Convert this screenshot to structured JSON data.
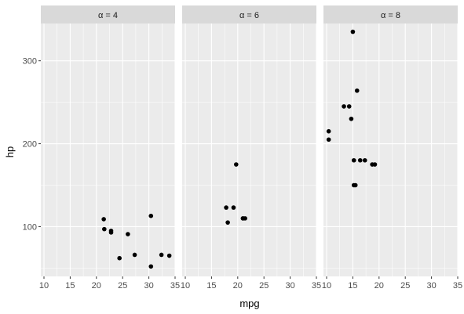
{
  "chart_data": {
    "type": "scatter",
    "xlabel": "mpg",
    "ylabel": "hp",
    "xlim": [
      9.4,
      35.0
    ],
    "ylim": [
      40,
      345
    ],
    "x_ticks": [
      10,
      15,
      20,
      25,
      30,
      35
    ],
    "x_tick_labels": [
      "10",
      "15",
      "20",
      "25",
      "30",
      "35"
    ],
    "y_ticks": [
      100,
      200,
      300
    ],
    "y_tick_labels": [
      "100",
      "200",
      "300"
    ],
    "grid": true,
    "legend": "none",
    "facets": [
      {
        "label": "α = 4",
        "points": [
          {
            "x": 21.4,
            "y": 109
          },
          {
            "x": 21.5,
            "y": 97
          },
          {
            "x": 22.8,
            "y": 93
          },
          {
            "x": 22.8,
            "y": 95
          },
          {
            "x": 24.4,
            "y": 62
          },
          {
            "x": 26.0,
            "y": 91
          },
          {
            "x": 27.3,
            "y": 66
          },
          {
            "x": 30.4,
            "y": 52
          },
          {
            "x": 30.4,
            "y": 113
          },
          {
            "x": 32.4,
            "y": 66
          },
          {
            "x": 33.9,
            "y": 65
          }
        ]
      },
      {
        "label": "α = 6",
        "points": [
          {
            "x": 17.8,
            "y": 123
          },
          {
            "x": 18.1,
            "y": 105
          },
          {
            "x": 19.2,
            "y": 123
          },
          {
            "x": 19.7,
            "y": 175
          },
          {
            "x": 21.0,
            "y": 110
          },
          {
            "x": 21.0,
            "y": 110
          },
          {
            "x": 21.4,
            "y": 110
          }
        ]
      },
      {
        "label": "α = 8",
        "points": [
          {
            "x": 10.4,
            "y": 205
          },
          {
            "x": 10.4,
            "y": 215
          },
          {
            "x": 13.3,
            "y": 245
          },
          {
            "x": 14.3,
            "y": 245
          },
          {
            "x": 14.7,
            "y": 230
          },
          {
            "x": 15.0,
            "y": 335
          },
          {
            "x": 15.2,
            "y": 180
          },
          {
            "x": 15.2,
            "y": 150
          },
          {
            "x": 15.5,
            "y": 150
          },
          {
            "x": 15.8,
            "y": 264
          },
          {
            "x": 16.4,
            "y": 180
          },
          {
            "x": 17.3,
            "y": 180
          },
          {
            "x": 18.7,
            "y": 175
          },
          {
            "x": 19.2,
            "y": 175
          }
        ]
      }
    ]
  }
}
